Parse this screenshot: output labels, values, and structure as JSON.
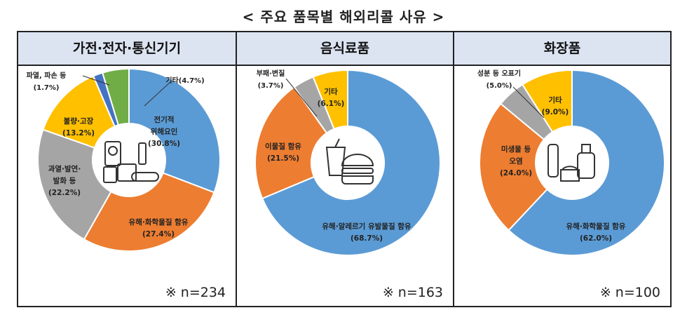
{
  "page": {
    "title": "< 주요 품목별 해외리콜 사유 >"
  },
  "colors": {
    "blue": "#5b9bd5",
    "orange": "#ed7d31",
    "gray": "#a5a5a5",
    "yellow": "#ffc000",
    "darkblue": "#4472c4",
    "green": "#70ad47",
    "header_bg": "#dce4f2"
  },
  "chart_data": [
    {
      "type": "pie",
      "title": "가전·전자·통신기기",
      "sample": "※ n=234",
      "icon": "electronics-icon",
      "slices": [
        {
          "name": "전기적 위해요인",
          "value": 30.8,
          "color": "#5b9bd5",
          "label_lines": [
            "전기적",
            "위해요인",
            "(30.8%)"
          ]
        },
        {
          "name": "유해·화학물질 함유",
          "value": 27.4,
          "color": "#ed7d31",
          "label_lines": [
            "유해·화학물질 함유",
            "(27.4%)"
          ]
        },
        {
          "name": "과열·발연·발화 등",
          "value": 22.2,
          "color": "#a5a5a5",
          "label_lines": [
            "과열·발연·",
            "발화 등",
            "(22.2%)"
          ]
        },
        {
          "name": "불량·고장",
          "value": 13.2,
          "color": "#ffc000",
          "label_lines": [
            "불량·고장",
            "(13.2%)"
          ]
        },
        {
          "name": "파열, 파손 등",
          "value": 1.7,
          "color": "#4472c4",
          "label_lines": [
            "파열, 파손 등",
            "(1.7%)"
          ]
        },
        {
          "name": "기타",
          "value": 4.7,
          "color": "#70ad47",
          "label_lines": [
            "기타(4.7%)"
          ]
        }
      ]
    },
    {
      "type": "pie",
      "title": "음식료품",
      "sample": "※ n=163",
      "icon": "food-icon",
      "slices": [
        {
          "name": "유해·알레르기 유발물질 함유",
          "value": 68.7,
          "color": "#5b9bd5",
          "label_lines": [
            "유해·알레르기 유발물질 함유",
            "(68.7%)"
          ]
        },
        {
          "name": "이물질 함유",
          "value": 21.5,
          "color": "#ed7d31",
          "label_lines": [
            "이물질 함유",
            "(21.5%)"
          ]
        },
        {
          "name": "부패·변질",
          "value": 3.7,
          "color": "#a5a5a5",
          "label_lines": [
            "부패·변질",
            "(3.7%)"
          ]
        },
        {
          "name": "기타",
          "value": 6.1,
          "color": "#ffc000",
          "label_lines": [
            "기타",
            "(6.1%)"
          ]
        }
      ]
    },
    {
      "type": "pie",
      "title": "화장품",
      "sample": "※ n=100",
      "icon": "cosmetics-icon",
      "slices": [
        {
          "name": "유해·화학물질 함유",
          "value": 62.0,
          "color": "#5b9bd5",
          "label_lines": [
            "유해·화학물질 함유",
            "(62.0%)"
          ]
        },
        {
          "name": "미생물 등 오염",
          "value": 24.0,
          "color": "#ed7d31",
          "label_lines": [
            "미생물 등",
            "오염",
            "(24.0%)"
          ]
        },
        {
          "name": "성분 등 오표기",
          "value": 5.0,
          "color": "#a5a5a5",
          "label_lines": [
            "성분 등 오표기",
            "(5.0%)"
          ]
        },
        {
          "name": "기타",
          "value": 9.0,
          "color": "#ffc000",
          "label_lines": [
            "기타",
            "(9.0%)"
          ]
        }
      ]
    }
  ]
}
